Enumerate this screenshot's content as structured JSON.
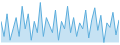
{
  "chart_data": {
    "type": "area",
    "values": [
      40,
      20,
      50,
      15,
      30,
      45,
      20,
      60,
      30,
      50,
      15,
      40,
      25,
      65,
      20,
      45,
      35,
      25,
      55,
      15,
      40,
      30,
      60,
      25,
      45,
      20,
      38,
      30,
      55,
      18,
      42,
      58,
      28,
      48,
      12,
      38,
      32,
      52,
      22,
      42
    ],
    "color": "#5baddc",
    "xlim": [
      0,
      39
    ],
    "ylim": [
      10,
      67
    ],
    "tick_labels": false
  }
}
